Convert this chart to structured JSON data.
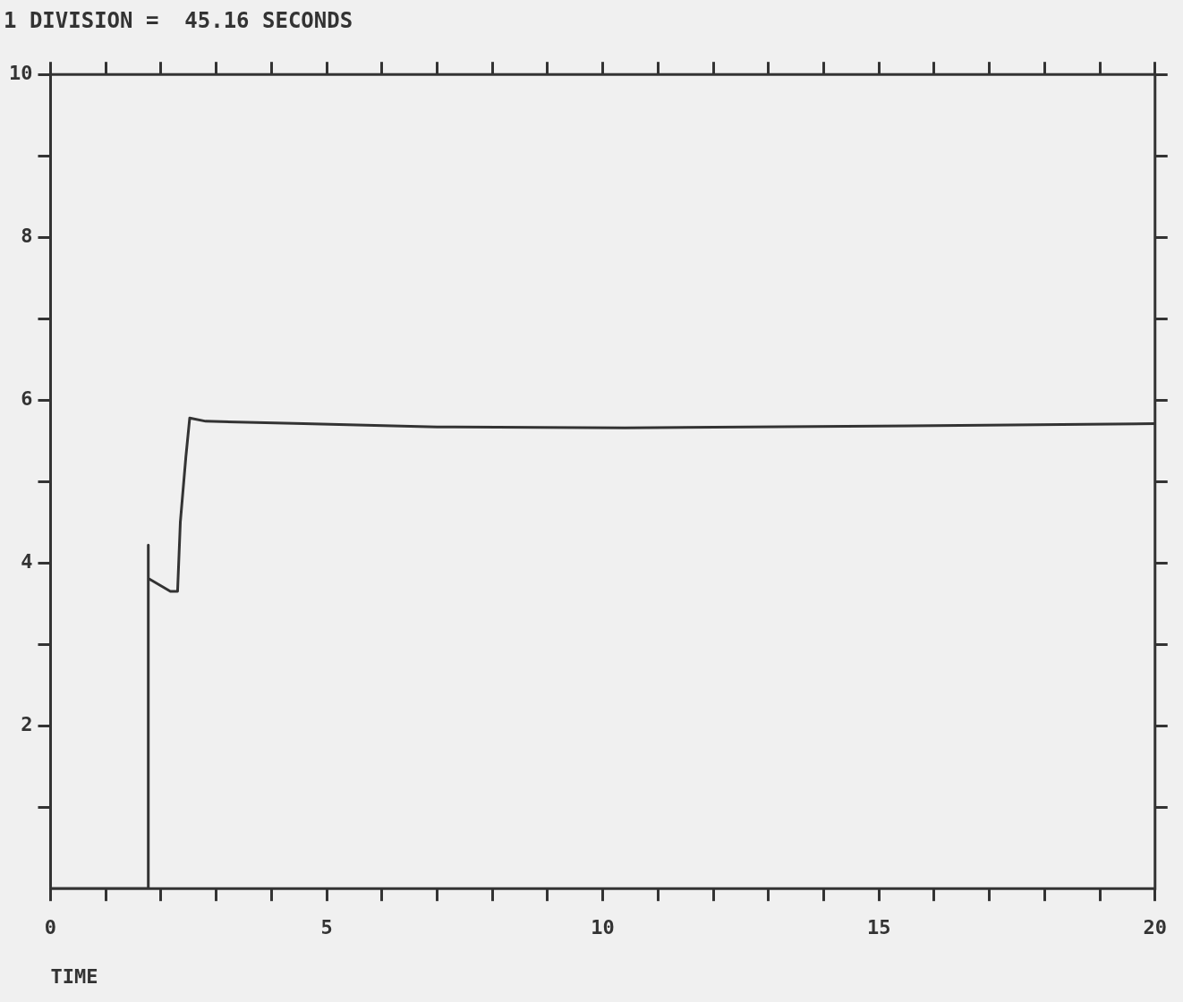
{
  "chart_data": {
    "type": "line",
    "title": "1 DIVISION =  45.16 SECONDS",
    "xlabel": "TIME",
    "x": [
      0,
      1.77,
      1.77,
      1.77,
      2.17,
      2.3,
      2.35,
      2.45,
      2.52,
      2.81,
      4.58,
      7,
      10.4,
      15,
      20
    ],
    "values": [
      0,
      0,
      4.22,
      3.81,
      3.65,
      3.65,
      4.5,
      5.3,
      5.78,
      5.74,
      5.71,
      5.67,
      5.66,
      5.68,
      5.71
    ],
    "color": "#333333",
    "marker": "none",
    "line_style": "solid",
    "grid": false,
    "legend": false,
    "xlim": [
      0,
      20
    ],
    "xticks": [
      0,
      {
        "value": 1,
        "label": null
      },
      {
        "value": 2,
        "label": null
      },
      {
        "value": 3,
        "label": null
      },
      {
        "value": 4,
        "label": null
      },
      5,
      {
        "value": 6,
        "label": null
      },
      {
        "value": 7,
        "label": null
      },
      {
        "value": 8,
        "label": null
      },
      {
        "value": 9,
        "label": null
      },
      10,
      {
        "value": 11,
        "label": null
      },
      {
        "value": 12,
        "label": null
      },
      {
        "value": 13,
        "label": null
      },
      {
        "value": 14,
        "label": null
      },
      15,
      {
        "value": 16,
        "label": null
      },
      {
        "value": 17,
        "label": null
      },
      {
        "value": 18,
        "label": null
      },
      {
        "value": 19,
        "label": null
      },
      20
    ],
    "ylim": [
      0,
      10
    ],
    "yticks": [
      {
        "value": 1,
        "label": null
      },
      2,
      {
        "value": 3,
        "label": null
      },
      4,
      {
        "value": 5,
        "label": null
      },
      6,
      {
        "value": 7,
        "label": null
      },
      8,
      {
        "value": 9,
        "label": null
      },
      10
    ]
  }
}
